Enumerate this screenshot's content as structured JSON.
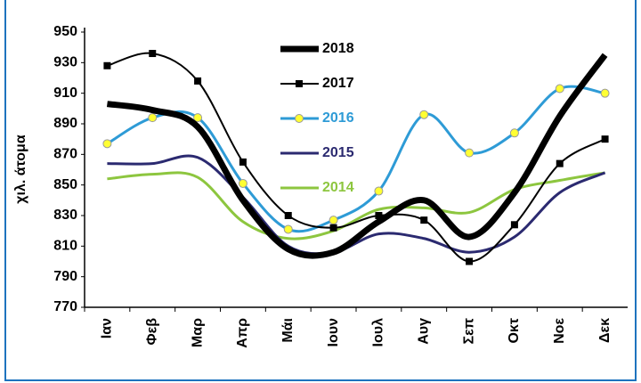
{
  "chart_data": {
    "type": "line",
    "y_label": "χιλ. άτομα",
    "categories": [
      "Ιαν",
      "Φεβ",
      "Μαρ",
      "Απρ",
      "Μάι",
      "Ιουν",
      "Ιουλ",
      "Αυγ",
      "Σεπ",
      "Οκτ",
      "Νοε",
      "Δεκ"
    ],
    "series": [
      {
        "name": "2018",
        "color": "#000000",
        "line_width": 7,
        "marker": "none",
        "values": [
          903,
          899,
          888,
          840,
          808,
          806,
          826,
          840,
          816,
          845,
          895,
          935
        ]
      },
      {
        "name": "2017",
        "color": "#000000",
        "line_width": 2,
        "marker": "square",
        "values": [
          928,
          936,
          918,
          865,
          830,
          822,
          830,
          827,
          800,
          824,
          864,
          880
        ]
      },
      {
        "name": "2016",
        "color": "#2e9bd6",
        "line_width": 3,
        "marker": "circle",
        "values": [
          877,
          894,
          894,
          851,
          821,
          827,
          846,
          896,
          871,
          884,
          913,
          910
        ]
      },
      {
        "name": "2015",
        "color": "#2b2a70",
        "line_width": 3,
        "marker": "none",
        "values": [
          864,
          864,
          868,
          842,
          810,
          806,
          818,
          815,
          806,
          816,
          845,
          858
        ]
      },
      {
        "name": "2014",
        "color": "#8dc63f",
        "line_width": 3,
        "marker": "none",
        "values": [
          854,
          857,
          855,
          826,
          815,
          820,
          834,
          835,
          832,
          847,
          853,
          858
        ]
      }
    ],
    "ylim": [
      770,
      950
    ],
    "yticks": [
      770,
      790,
      810,
      830,
      850,
      870,
      890,
      910,
      930,
      950
    ],
    "grid": false,
    "legend": "top"
  }
}
